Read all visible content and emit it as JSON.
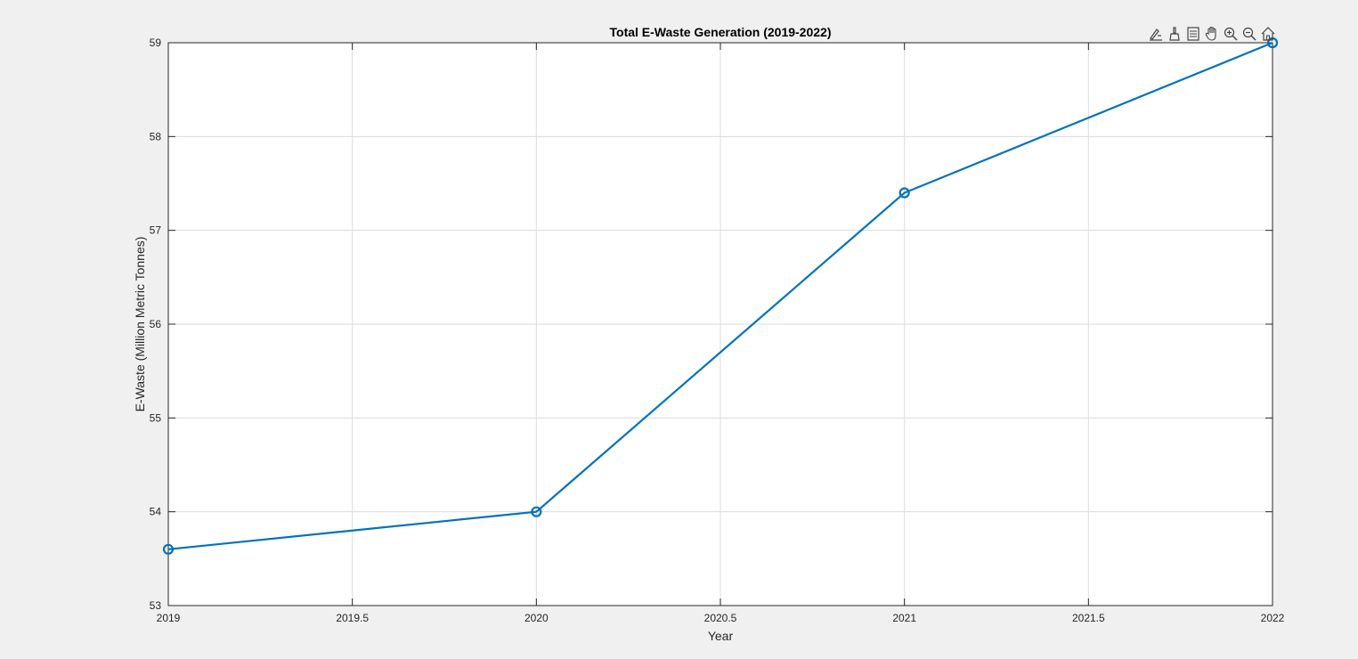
{
  "colors": {
    "figure_background": "#f0f0f0",
    "axes_background": "#ffffff",
    "grid": "#dcdcdc",
    "axis": "#262626",
    "series": "#0072bd"
  },
  "toolbar": {
    "icons": [
      "data-tips-icon",
      "brush-icon",
      "legend-icon",
      "pan-icon",
      "zoom-in-icon",
      "zoom-out-icon",
      "home-icon"
    ]
  },
  "chart_data": {
    "type": "line",
    "title": "Total E-Waste Generation (2019-2022)",
    "xlabel": "Year",
    "ylabel": "E-Waste (Million Metric Tonnes)",
    "xlim": [
      2019,
      2022
    ],
    "ylim": [
      53,
      59
    ],
    "xticks": [
      2019,
      2019.5,
      2020,
      2020.5,
      2021,
      2021.5,
      2022
    ],
    "xtick_labels": [
      "2019",
      "2019.5",
      "2020",
      "2020.5",
      "2021",
      "2021.5",
      "2022"
    ],
    "yticks": [
      53,
      54,
      55,
      56,
      57,
      58,
      59
    ],
    "ytick_labels": [
      "53",
      "54",
      "55",
      "56",
      "57",
      "58",
      "59"
    ],
    "grid": true,
    "legend": "none",
    "series": [
      {
        "x": [
          2019,
          2020,
          2021,
          2022
        ],
        "y": [
          53.6,
          54.0,
          57.4,
          59.0
        ],
        "marker": "circle",
        "color": "#0072bd"
      }
    ]
  }
}
